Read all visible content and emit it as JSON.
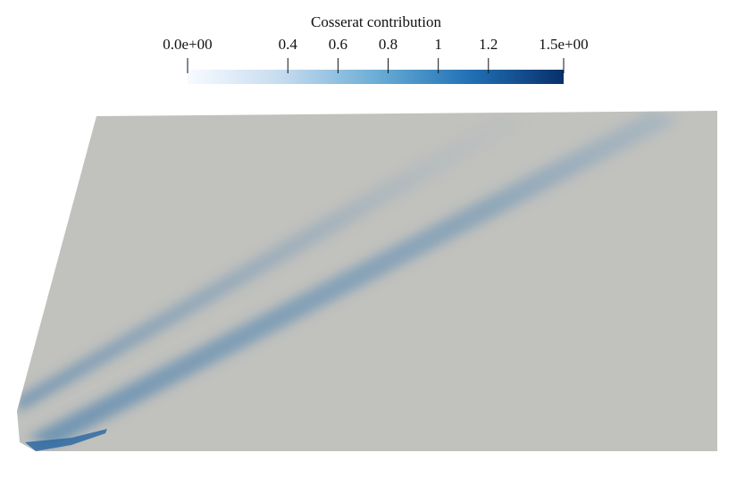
{
  "chart_data": {
    "type": "colorbar",
    "title": "Cosserat contribution",
    "xlim": [
      0,
      1.5
    ],
    "xticks": [
      {
        "value": 0,
        "label": "0.0e+00"
      },
      0.4,
      0.6,
      0.8,
      1,
      1.2,
      {
        "value": 1.5,
        "label": "1.5e+00"
      }
    ],
    "colormap": [
      "#f7fbff",
      "#c6dbef",
      "#6baed6",
      "#2171b5",
      "#08306b"
    ]
  }
}
